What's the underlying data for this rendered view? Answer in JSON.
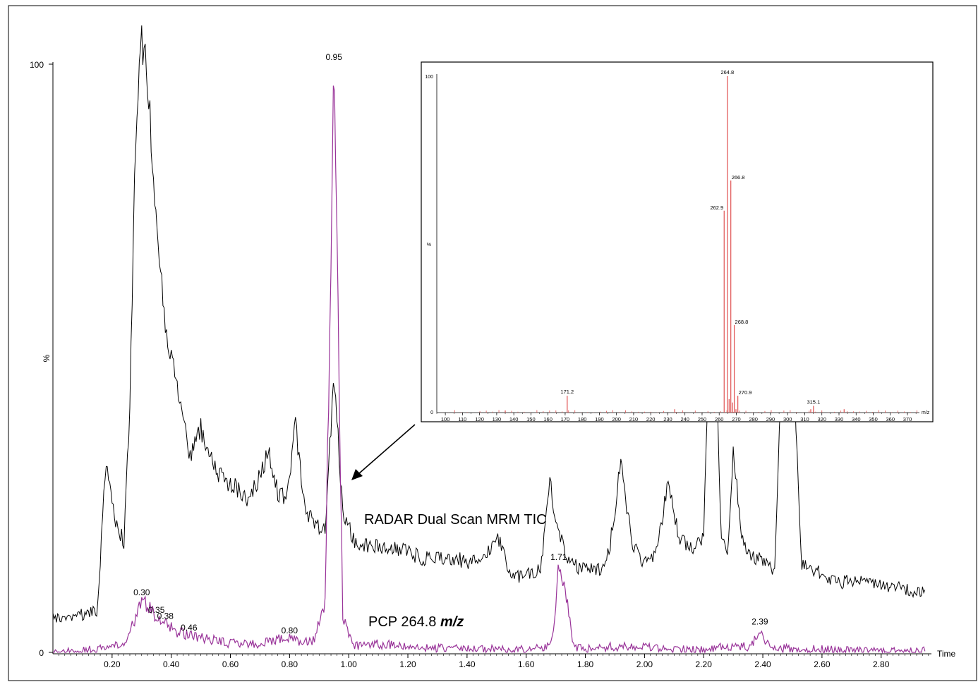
{
  "chart_data": [
    {
      "type": "line",
      "xlabel": "Time",
      "ylabel": "%",
      "xlim": [
        0.0,
        2.97
      ],
      "ylim": [
        0,
        100
      ],
      "xticks": [
        "0.20",
        "0.40",
        "0.60",
        "0.80",
        "1.00",
        "1.20",
        "1.40",
        "1.60",
        "1.80",
        "2.00",
        "2.20",
        "2.40",
        "2.60",
        "2.80"
      ],
      "yticks": [
        "0",
        "100"
      ],
      "series": [
        {
          "name": "RADAR Dual Scan MRM TIC",
          "color": "#000000",
          "x": [
            0.0,
            0.1,
            0.15,
            0.18,
            0.21,
            0.24,
            0.26,
            0.28,
            0.3,
            0.32,
            0.34,
            0.36,
            0.38,
            0.4,
            0.42,
            0.44,
            0.46,
            0.5,
            0.54,
            0.58,
            0.62,
            0.66,
            0.7,
            0.73,
            0.76,
            0.79,
            0.82,
            0.85,
            0.88,
            0.92,
            0.95,
            0.98,
            1.02,
            1.08,
            1.15,
            1.25,
            1.35,
            1.45,
            1.5,
            1.55,
            1.6,
            1.65,
            1.68,
            1.71,
            1.75,
            1.8,
            1.85,
            1.88,
            1.92,
            1.96,
            2.0,
            2.04,
            2.08,
            2.12,
            2.16,
            2.2,
            2.22,
            2.24,
            2.26,
            2.28,
            2.3,
            2.33,
            2.36,
            2.4,
            2.44,
            2.47,
            2.5,
            2.53,
            2.58,
            2.65,
            2.75,
            2.85,
            2.95
          ],
          "y": [
            6,
            6.5,
            7,
            33,
            22,
            19,
            42,
            88,
            104,
            98,
            80,
            68,
            55,
            50,
            45,
            40,
            33,
            38,
            32,
            29,
            28,
            26,
            30,
            34,
            27,
            26,
            39,
            25,
            22,
            21,
            47,
            24,
            19,
            18,
            18,
            16,
            16,
            15,
            20,
            13,
            13,
            14,
            29,
            20,
            15,
            14,
            14,
            17,
            32,
            18,
            15,
            17,
            29,
            19,
            18,
            19,
            56,
            51,
            19,
            17,
            34,
            19,
            16,
            16,
            14,
            56,
            55,
            15,
            14,
            12,
            12,
            11,
            10
          ]
        },
        {
          "name": "PCP 264.8 m/z",
          "color": "#993399",
          "x": [
            0.0,
            0.15,
            0.2,
            0.25,
            0.28,
            0.3,
            0.32,
            0.35,
            0.38,
            0.42,
            0.46,
            0.5,
            0.55,
            0.6,
            0.7,
            0.78,
            0.8,
            0.84,
            0.88,
            0.92,
            0.95,
            0.98,
            1.02,
            1.08,
            1.2,
            1.4,
            1.6,
            1.66,
            1.69,
            1.71,
            1.73,
            1.76,
            1.8,
            1.9,
            2.0,
            2.1,
            2.2,
            2.3,
            2.36,
            2.39,
            2.42,
            2.5,
            2.6,
            2.7,
            2.8,
            2.95
          ],
          "y": [
            0,
            0.5,
            1,
            2,
            6,
            9,
            8,
            6,
            5,
            3.5,
            3,
            2.5,
            2,
            1.5,
            1.5,
            2.5,
            2.5,
            1.5,
            2,
            8,
            100,
            6,
            1,
            1.5,
            1,
            0.5,
            0.5,
            1,
            2,
            15,
            11,
            1,
            0.5,
            1,
            1,
            0.5,
            0.5,
            1,
            1,
            4,
            1,
            0.5,
            0.5,
            0.3,
            0.3,
            0.2
          ]
        }
      ],
      "annotations": [
        {
          "text": "0.95",
          "x": 0.95
        },
        {
          "text": "0.30",
          "x": 0.3
        },
        {
          "text": "0.35",
          "x": 0.35
        },
        {
          "text": "0.38",
          "x": 0.38
        },
        {
          "text": "0.46",
          "x": 0.46
        },
        {
          "text": "0.80",
          "x": 0.8
        },
        {
          "text": "1.71",
          "x": 1.71
        },
        {
          "text": "2.39",
          "x": 2.39
        }
      ],
      "labels": {
        "tic": "RADAR Dual Scan MRM TIC",
        "pcp_prefix": "PCP 264.8 ",
        "pcp_unit": "m/z"
      }
    },
    {
      "type": "bar",
      "xlabel": "m/z",
      "ylabel": "%",
      "xlim": [
        95,
        377
      ],
      "ylim": [
        0,
        100
      ],
      "xticks": [
        "100",
        "110",
        "120",
        "130",
        "140",
        "150",
        "160",
        "170",
        "180",
        "190",
        "200",
        "210",
        "220",
        "230",
        "240",
        "250",
        "260",
        "270",
        "280",
        "290",
        "300",
        "310",
        "320",
        "330",
        "340",
        "350",
        "360",
        "370"
      ],
      "yticks": [
        "0",
        "100"
      ],
      "color": "#e05050",
      "peaks": [
        {
          "mz": 171.2,
          "value": 5,
          "label": "171.2"
        },
        {
          "mz": 262.9,
          "value": 60,
          "label": "262.9"
        },
        {
          "mz": 264.8,
          "value": 100,
          "label": "264.8"
        },
        {
          "mz": 266.8,
          "value": 69,
          "label": "266.8"
        },
        {
          "mz": 268.8,
          "value": 26,
          "label": "268.8"
        },
        {
          "mz": 270.9,
          "value": 5,
          "label": "270.9"
        },
        {
          "mz": 315.1,
          "value": 2,
          "label": "315.1"
        },
        {
          "mz": 234,
          "value": 1,
          "label": ""
        },
        {
          "mz": 265.8,
          "value": 4,
          "label": ""
        },
        {
          "mz": 267.8,
          "value": 3,
          "label": ""
        },
        {
          "mz": 269.8,
          "value": 1,
          "label": ""
        },
        {
          "mz": 135,
          "value": 0.6,
          "label": ""
        },
        {
          "mz": 333,
          "value": 1,
          "label": ""
        },
        {
          "mz": 313.5,
          "value": 1,
          "label": ""
        }
      ]
    }
  ]
}
